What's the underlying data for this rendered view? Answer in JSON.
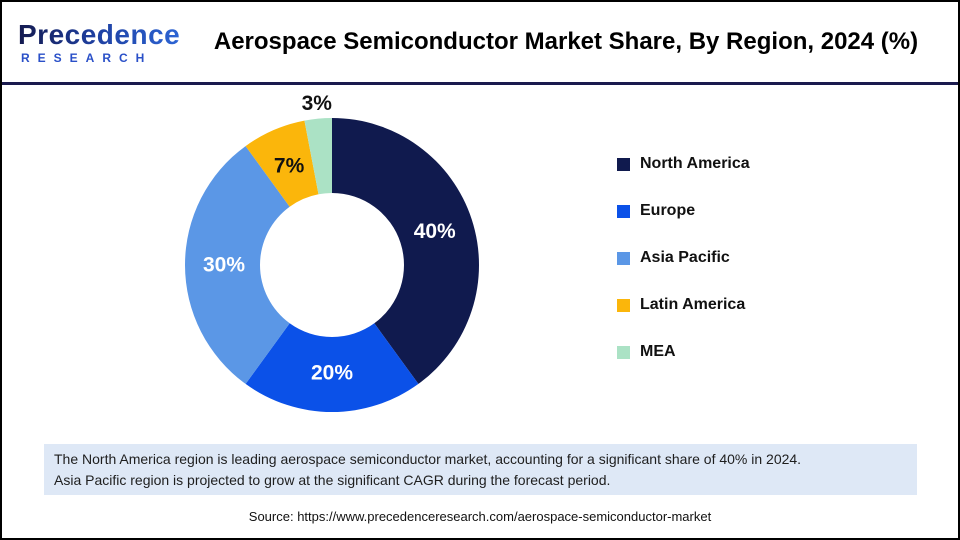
{
  "header": {
    "logo_line1": "Precedence",
    "logo_line2": "RESEARCH",
    "title": "Aerospace Semiconductor Market Share, By Region, 2024 (%)"
  },
  "chart_data": {
    "type": "pie",
    "subtype": "donut",
    "title": "Aerospace Semiconductor Market Share, By Region, 2024 (%)",
    "direction": "clockwise",
    "start_angle_deg": 0,
    "inner_radius_ratio": 0.49,
    "legend_position": "right",
    "categories": [
      "North America",
      "Europe",
      "Asia Pacific",
      "Latin America",
      "MEA"
    ],
    "values": [
      40,
      20,
      30,
      7,
      3
    ],
    "slices": [
      {
        "label": "North America",
        "value": 40,
        "display": "40%",
        "color": "#101A4E",
        "label_color": "#FFFFFF",
        "label_inside": true
      },
      {
        "label": "Europe",
        "value": 20,
        "display": "20%",
        "color": "#0B51E8",
        "label_color": "#FFFFFF",
        "label_inside": true
      },
      {
        "label": "Asia Pacific",
        "value": 30,
        "display": "30%",
        "color": "#5B97E6",
        "label_color": "#FFFFFF",
        "label_inside": true
      },
      {
        "label": "Latin America",
        "value": 7,
        "display": "7%",
        "color": "#FBB60B",
        "label_color": "#111111",
        "label_inside": true
      },
      {
        "label": "MEA",
        "value": 3,
        "display": "3%",
        "color": "#ABE2C5",
        "label_color": "#111111",
        "label_inside": false
      }
    ]
  },
  "note": {
    "line1": "The North America region is leading aerospace semiconductor market, accounting for a significant share of 40% in 2024.",
    "line2": "Asia Pacific region is projected to grow at the significant CAGR during the forecast period."
  },
  "source_text": "Source: https://www.precedenceresearch.com/aerospace-semiconductor-market",
  "colors": {
    "header_rule": "#1A1A4E",
    "note_background": "#DEE8F6",
    "logo_gradient_start": "#141A4F",
    "logo_gradient_end": "#2E68D9",
    "logo_research_blue": "#2A50C8"
  }
}
